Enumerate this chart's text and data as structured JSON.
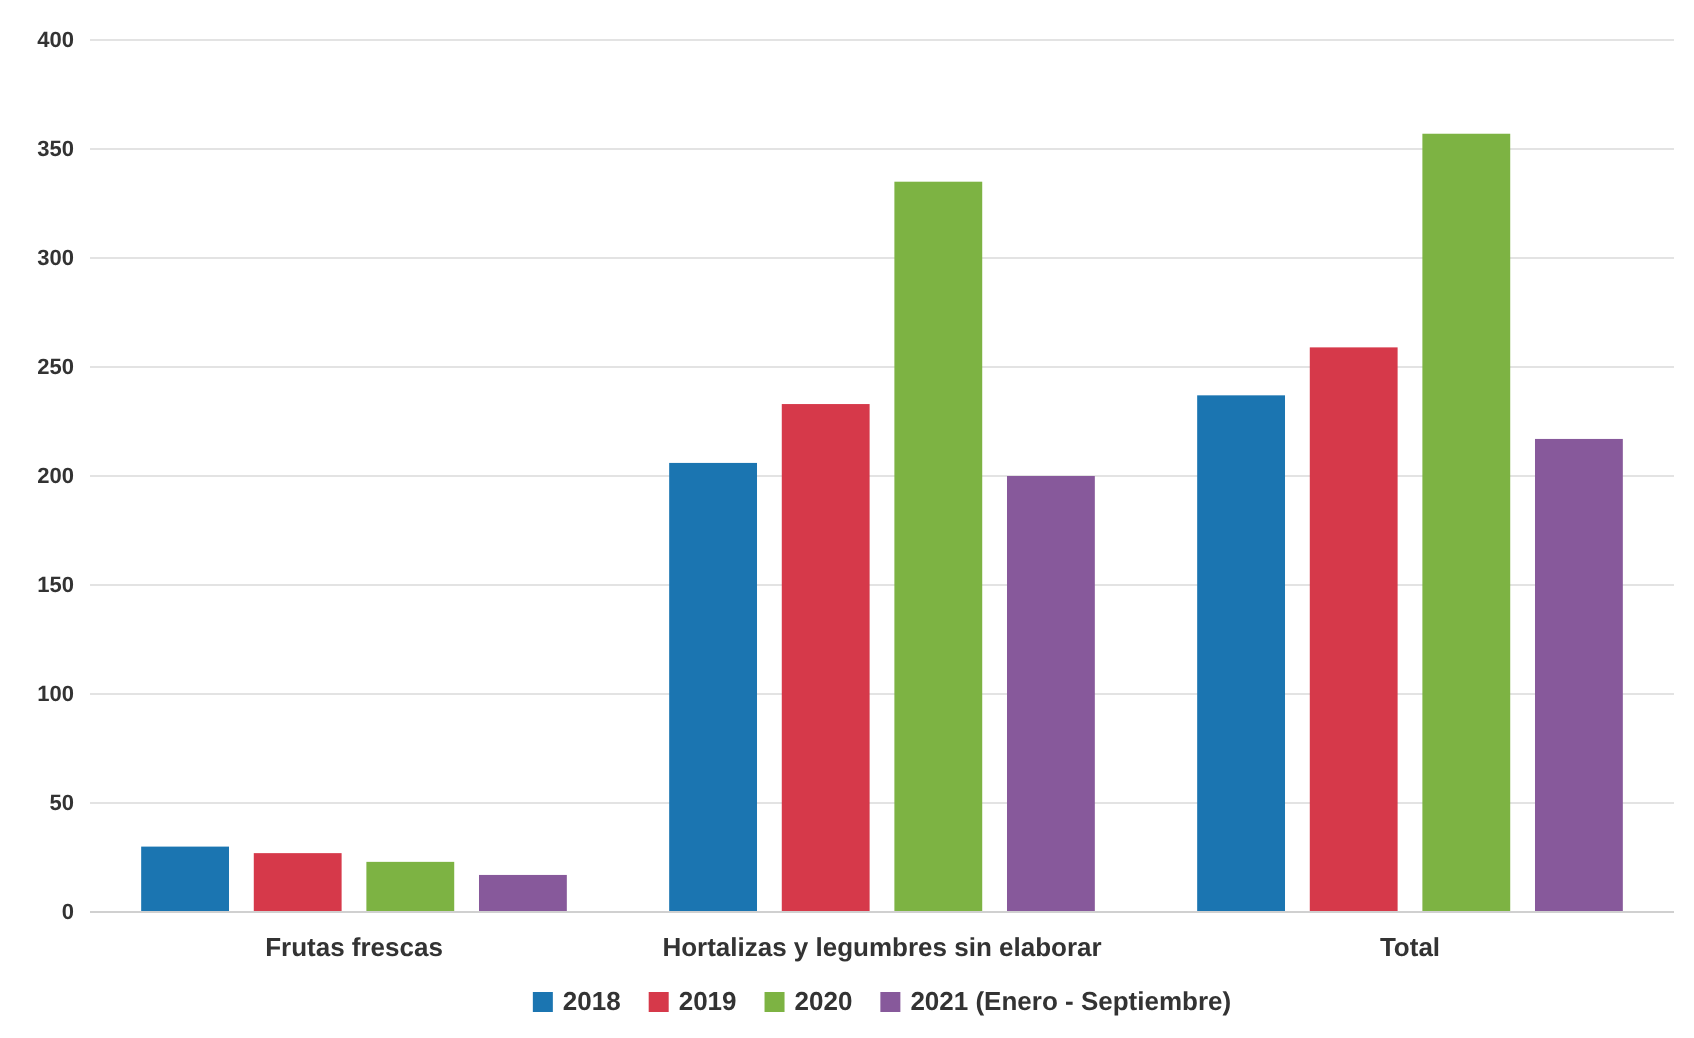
{
  "chart_data": {
    "type": "bar",
    "categories": [
      "Frutas frescas",
      "Hortalizas y legumbres sin elaborar",
      "Total"
    ],
    "series": [
      {
        "name": "2018",
        "color": "#1b75b1",
        "values": [
          30,
          206,
          237
        ]
      },
      {
        "name": "2019",
        "color": "#d6394a",
        "values": [
          27,
          233,
          259
        ]
      },
      {
        "name": "2020",
        "color": "#7db343",
        "values": [
          23,
          335,
          357
        ]
      },
      {
        "name": "2021 (Enero - Septiembre)",
        "color": "#87599b",
        "values": [
          17,
          200,
          217
        ]
      }
    ],
    "ylim": [
      0,
      400
    ],
    "yticks": [
      0,
      50,
      100,
      150,
      200,
      250,
      300,
      350,
      400
    ],
    "grid": "y",
    "legend": "bottom"
  }
}
